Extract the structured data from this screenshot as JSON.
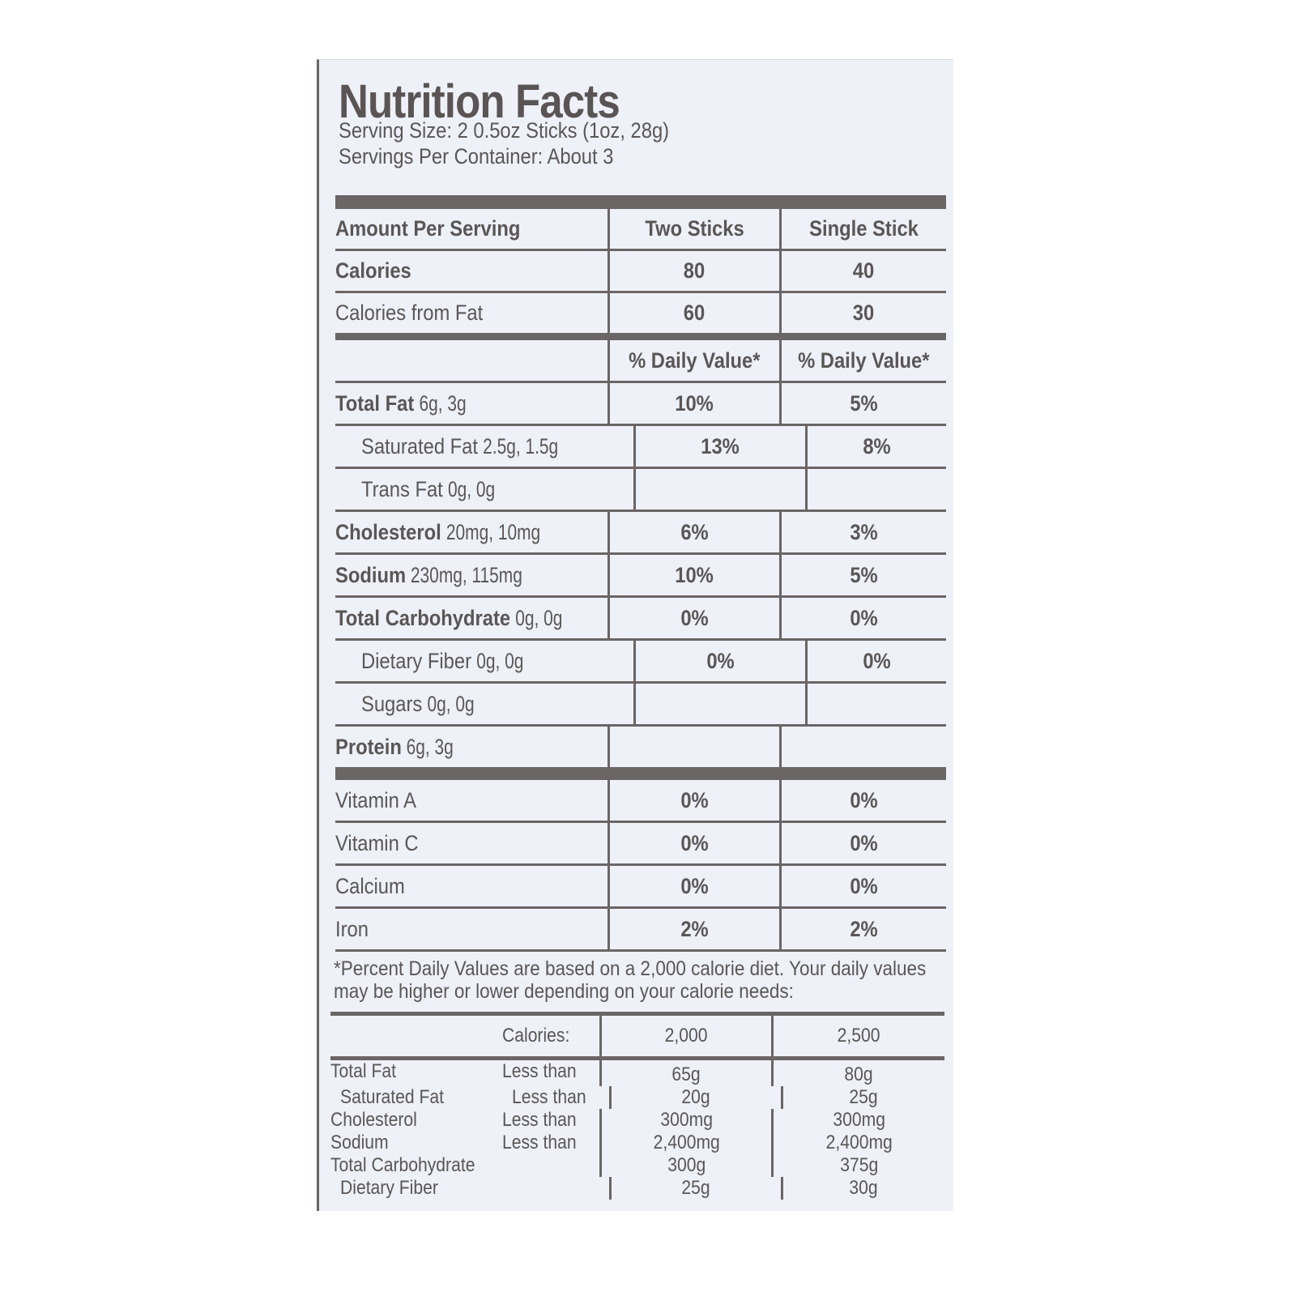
{
  "title": "Nutrition Facts",
  "serving_size": "Serving Size: 2 0.5oz Sticks (1oz, 28g)",
  "servings_per_container": "Servings Per Container: About 3",
  "header": {
    "label": "Amount Per Serving",
    "col1": "Two Sticks",
    "col2": "Single Stick"
  },
  "calories_rows": [
    {
      "label": "Calories",
      "bold": true,
      "v1": "80",
      "v2": "40"
    },
    {
      "label": "Calories from Fat",
      "bold": false,
      "v1": "60",
      "v2": "30"
    }
  ],
  "dv_header": {
    "col1": "% Daily Value*",
    "col2": "% Daily Value*"
  },
  "nutrients": [
    {
      "name": "Total Fat",
      "amount": " 6g, 3g",
      "bold": true,
      "indent": false,
      "v1": "10%",
      "v2": "5%"
    },
    {
      "name": "Saturated Fat",
      "amount": " 2.5g, 1.5g",
      "bold": false,
      "indent": true,
      "v1": "13%",
      "v2": "8%"
    },
    {
      "name": "Trans Fat",
      "amount": " 0g, 0g",
      "bold": false,
      "indent": true,
      "v1": "",
      "v2": ""
    },
    {
      "name": "Cholesterol",
      "amount": " 20mg, 10mg",
      "bold": true,
      "indent": false,
      "v1": "6%",
      "v2": "3%"
    },
    {
      "name": "Sodium",
      "amount": " 230mg, 115mg",
      "bold": true,
      "indent": false,
      "v1": "10%",
      "v2": "5%"
    },
    {
      "name": "Total Carbohydrate",
      "amount": " 0g, 0g",
      "bold": true,
      "indent": false,
      "v1": "0%",
      "v2": "0%"
    },
    {
      "name": "Dietary Fiber",
      "amount": " 0g, 0g",
      "bold": false,
      "indent": true,
      "v1": "0%",
      "v2": "0%"
    },
    {
      "name": "Sugars",
      "amount": " 0g, 0g",
      "bold": false,
      "indent": true,
      "v1": "",
      "v2": ""
    },
    {
      "name": "Protein",
      "amount": " 6g, 3g",
      "bold": true,
      "indent": false,
      "v1": "",
      "v2": ""
    }
  ],
  "vitamins": [
    {
      "name": "Vitamin A",
      "v1": "0%",
      "v2": "0%"
    },
    {
      "name": "Vitamin C",
      "v1": "0%",
      "v2": "0%"
    },
    {
      "name": "Calcium",
      "v1": "0%",
      "v2": "0%"
    },
    {
      "name": "Iron",
      "v1": "2%",
      "v2": "2%"
    }
  ],
  "footnote": "*Percent Daily Values are based on a 2,000 calorie diet. Your daily values may be higher or lower depending on your calorie needs:",
  "dv_table": {
    "calories_label": "Calories:",
    "cal1": "2,000",
    "cal2": "2,500",
    "rows": [
      {
        "name": "Total Fat",
        "qual": "Less than",
        "v1": "65g",
        "v2": "80g",
        "indent": false
      },
      {
        "name": "Saturated Fat",
        "qual": "Less than",
        "v1": "20g",
        "v2": "25g",
        "indent": true
      },
      {
        "name": "Cholesterol",
        "qual": "Less than",
        "v1": "300mg",
        "v2": "300mg",
        "indent": false
      },
      {
        "name": "Sodium",
        "qual": "Less than",
        "v1": "2,400mg",
        "v2": "2,400mg",
        "indent": false
      },
      {
        "name": "Total Carbohydrate",
        "qual": "",
        "v1": "300g",
        "v2": "375g",
        "indent": false
      },
      {
        "name": "Dietary Fiber",
        "qual": "",
        "v1": "25g",
        "v2": "30g",
        "indent": true
      }
    ]
  }
}
